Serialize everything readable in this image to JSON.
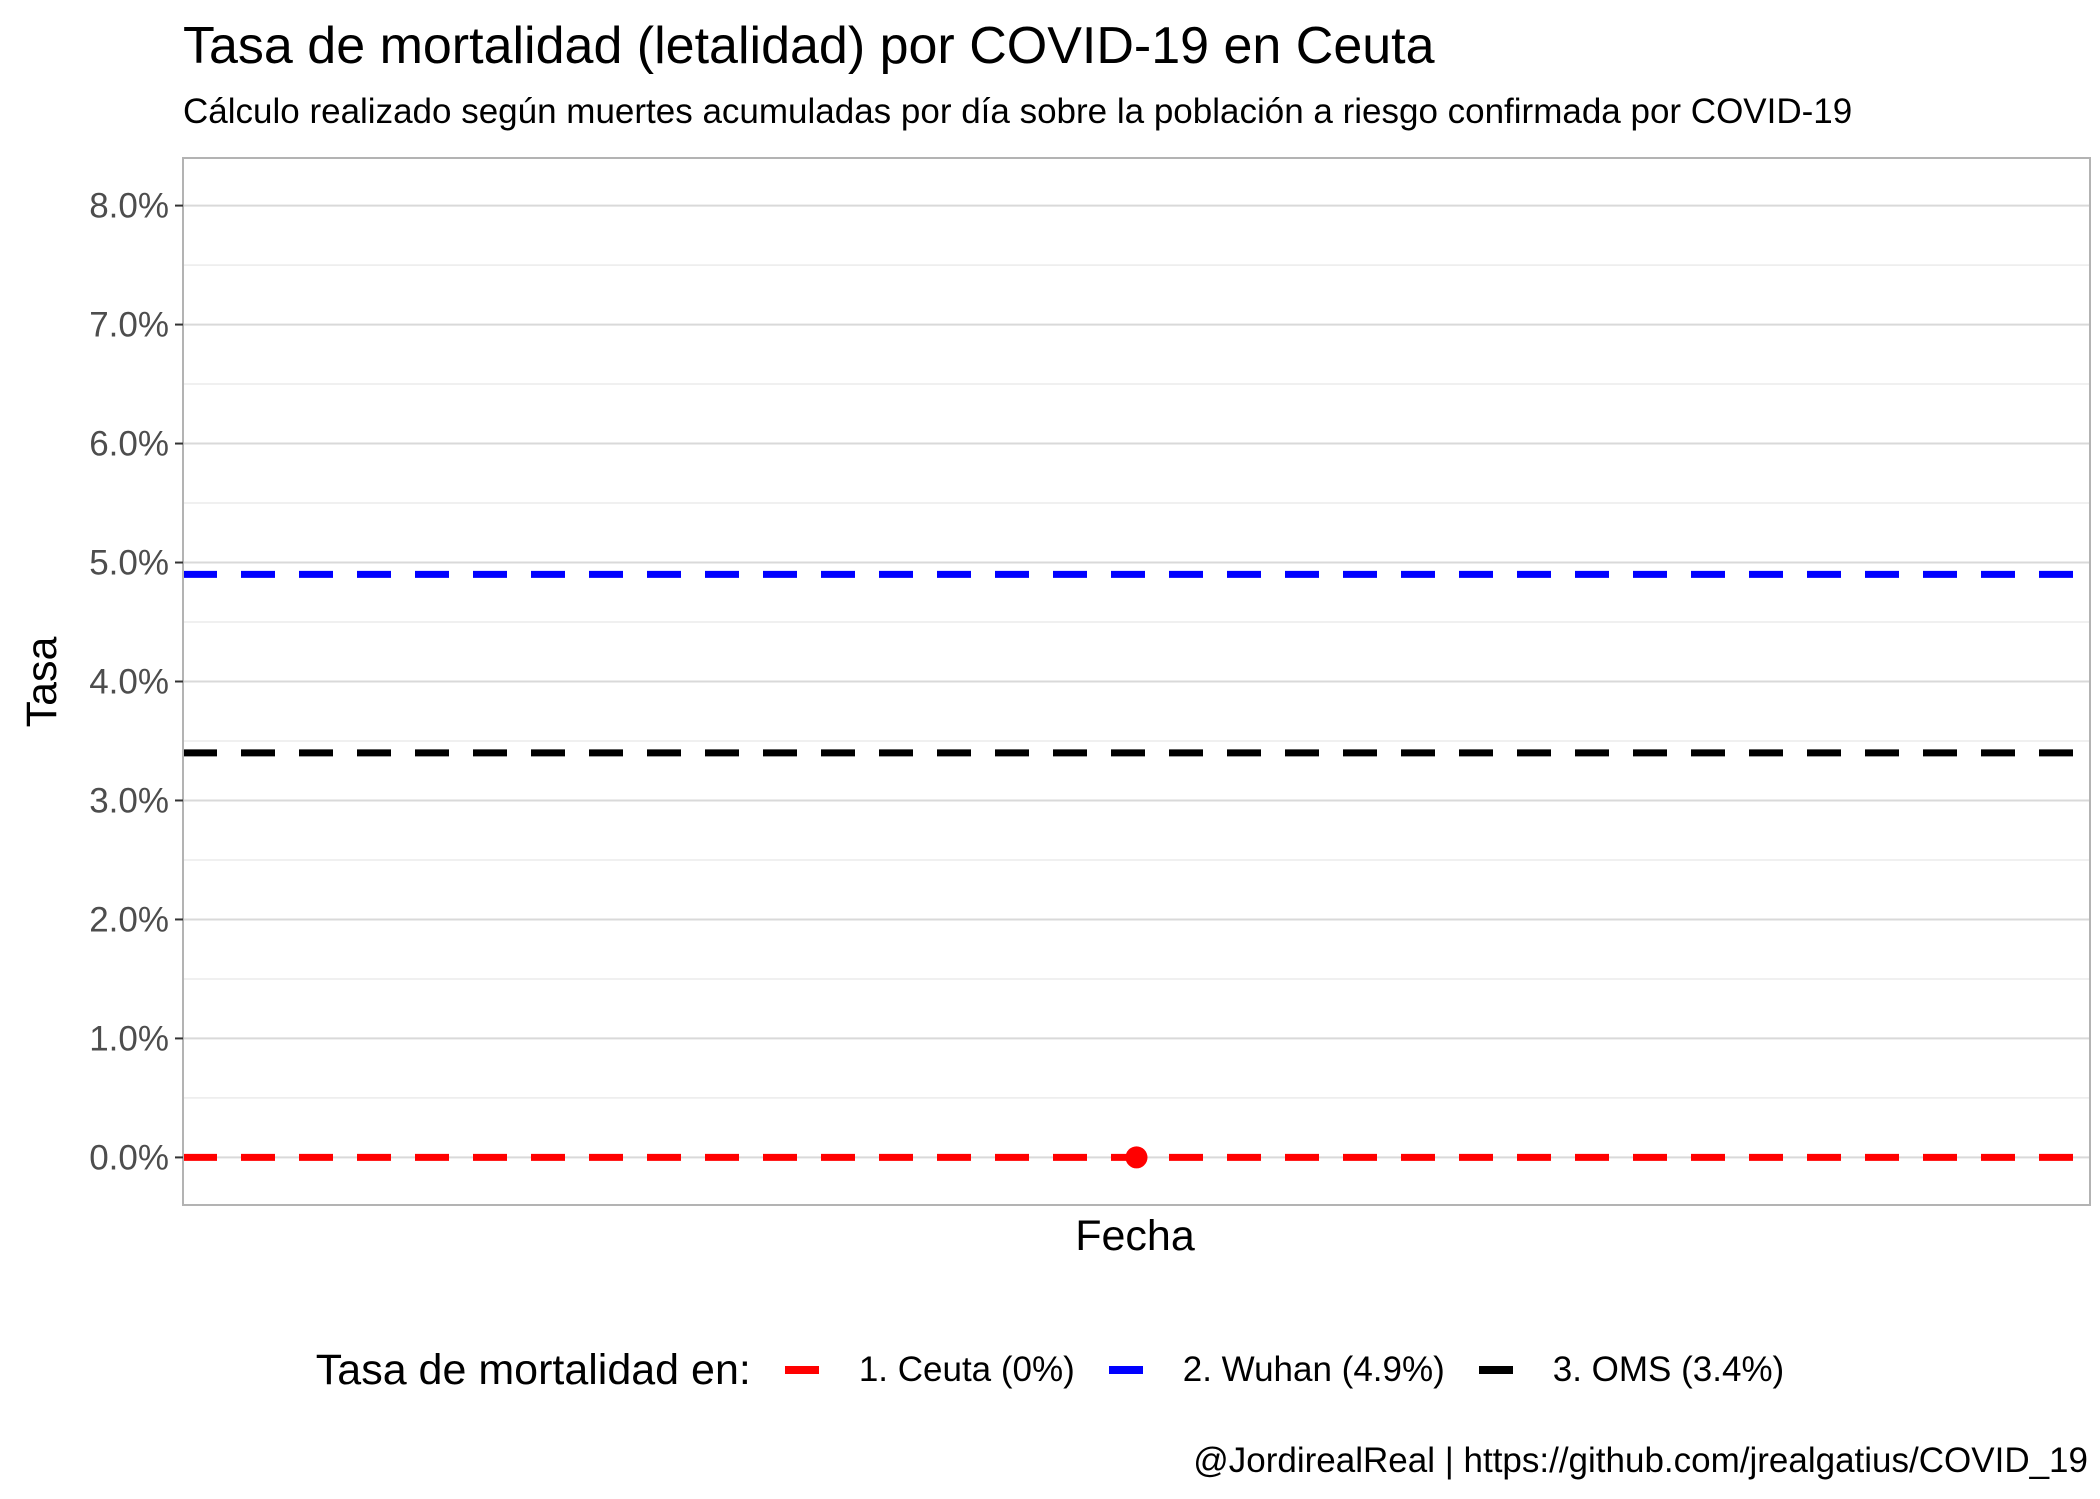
{
  "chart_data": {
    "type": "line",
    "title": "Tasa de mortalidad (letalidad) por COVID-19 en Ceuta",
    "subtitle": "Cálculo realizado según muertes acumuladas por día sobre la población a riesgo confirmada por COVID-19",
    "xlabel": "Fecha",
    "ylabel": "Tasa",
    "ylim": [
      -0.4,
      8.4
    ],
    "yticks": [
      0,
      1,
      2,
      3,
      4,
      5,
      6,
      7,
      8
    ],
    "ytick_labels": [
      "0.0%",
      "1.0%",
      "2.0%",
      "3.0%",
      "4.0%",
      "5.0%",
      "6.0%",
      "7.0%",
      "8.0%"
    ],
    "grid": true,
    "legend": {
      "title": "Tasa de mortalidad en:",
      "position": "bottom"
    },
    "series": [
      {
        "name": "1. Ceuta (0%)",
        "reference_value": 0,
        "color": "#FF0000",
        "style": "dashed"
      },
      {
        "name": "2. Wuhan (4.9%)",
        "reference_value": 4.9,
        "color": "#0000FF",
        "style": "dashed"
      },
      {
        "name": "3. OMS (3.4%)",
        "reference_value": 3.4,
        "color": "#000000",
        "style": "dashed"
      }
    ],
    "points": [
      {
        "series": "1. Ceuta (0%)",
        "y": 0,
        "color": "#FF0000"
      }
    ],
    "caption": "@JordirealReal | https://github.com/jrealgatius/COVID_19"
  }
}
